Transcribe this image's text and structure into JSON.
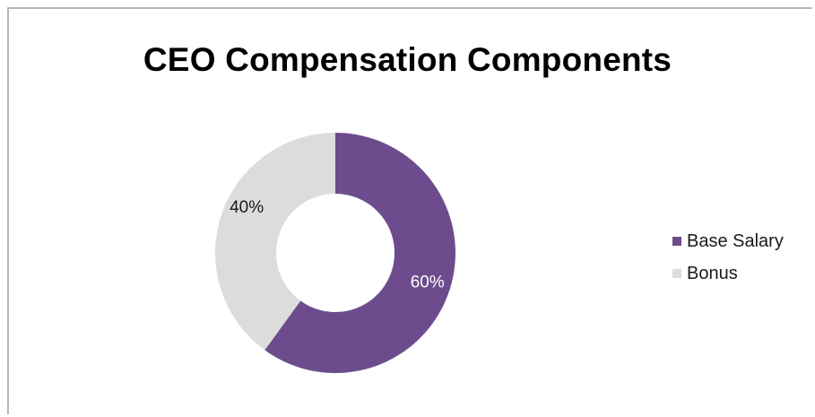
{
  "chart_data": {
    "type": "pie",
    "title": "CEO Compensation Components",
    "categories": [
      "Base Salary",
      "Bonus"
    ],
    "values": [
      60,
      40
    ],
    "data_labels": [
      "60%",
      "40%"
    ],
    "colors": [
      "#6d4c8d",
      "#dcdcdc"
    ],
    "label_colors": [
      "#ffffff",
      "#1a1a1a"
    ],
    "donut": true,
    "legend_position": "right"
  }
}
